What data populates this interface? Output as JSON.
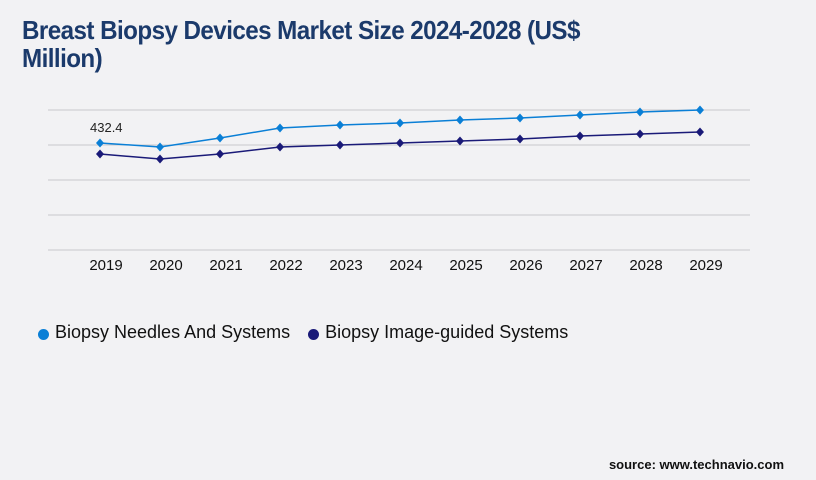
{
  "chart_data": {
    "type": "line",
    "title": "Breast Biopsy Devices Market Size 2024-2028 (US$ Million)",
    "xlabel": "",
    "ylabel": "",
    "categories": [
      "2019",
      "2020",
      "2021",
      "2022",
      "2023",
      "2024",
      "2025",
      "2026",
      "2027",
      "2028",
      "2029"
    ],
    "ylim": [
      0,
      565.7
    ],
    "grid": true,
    "gridlines": [
      0,
      141.4,
      282.9,
      424.3,
      565.7
    ],
    "legend_position": "bottom-left",
    "series": [
      {
        "name": "Biopsy Needles And Systems",
        "color": "#0a7fd6",
        "values": [
          432.4,
          416.2,
          452.6,
          493.0,
          505.1,
          513.2,
          525.3,
          533.4,
          545.5,
          557.6,
          565.7
        ]
      },
      {
        "name": "Biopsy Image-guided Systems",
        "color": "#1a1a78",
        "values": [
          387.9,
          367.7,
          387.9,
          416.2,
          424.3,
          432.4,
          440.4,
          448.5,
          460.6,
          468.7,
          476.8
        ]
      }
    ],
    "annotations": [
      {
        "series": 0,
        "index": 0,
        "text": "432.4"
      }
    ]
  },
  "source": "source: www.technavio.com"
}
